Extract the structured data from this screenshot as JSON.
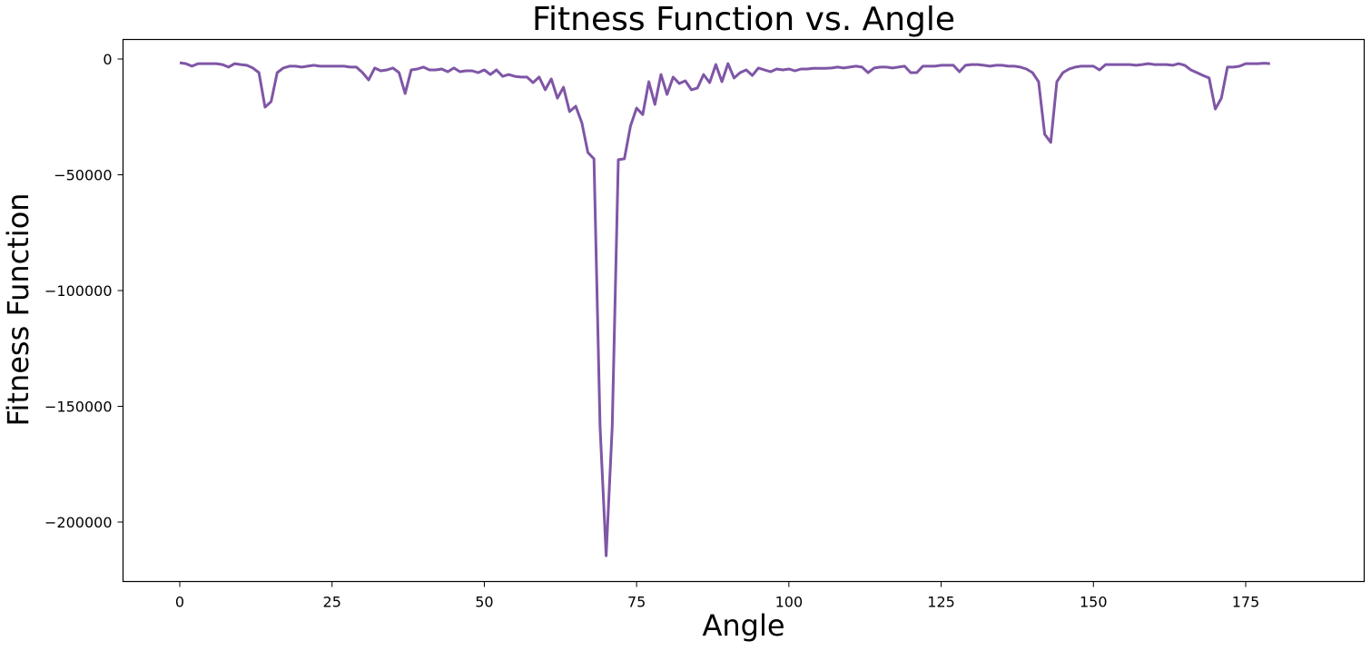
{
  "chart_data": {
    "type": "line",
    "title": "Fitness Function vs. Angle",
    "xlabel": "Angle",
    "ylabel": "Fitness Function",
    "xlim": [
      -9,
      189
    ],
    "ylim": [
      -225000,
      9000
    ],
    "xticks": [
      0,
      25,
      50,
      75,
      100,
      125,
      150,
      175
    ],
    "yticks": [
      0,
      -50000,
      -100000,
      -150000,
      -200000
    ],
    "grid": false,
    "legend": "none",
    "color": "#7f56a6",
    "series": [
      {
        "name": "Fitness Function",
        "x_start": 0,
        "x_step": 1,
        "values": [
          -1600,
          -2000,
          -3100,
          -2000,
          -2000,
          -2000,
          -2000,
          -2400,
          -3500,
          -2000,
          -2400,
          -2700,
          -3900,
          -5900,
          -20800,
          -18400,
          -5900,
          -3900,
          -3100,
          -3100,
          -3500,
          -3100,
          -2700,
          -3100,
          -3100,
          -3100,
          -3100,
          -3100,
          -3500,
          -3500,
          -5900,
          -9000,
          -3900,
          -5100,
          -4700,
          -3900,
          -5900,
          -14900,
          -4700,
          -4300,
          -3500,
          -4700,
          -4700,
          -4300,
          -5500,
          -3900,
          -5500,
          -5100,
          -5100,
          -5900,
          -4700,
          -6700,
          -4700,
          -7500,
          -6700,
          -7500,
          -7800,
          -7800,
          -10200,
          -7800,
          -13300,
          -8600,
          -16900,
          -12200,
          -22700,
          -20400,
          -27500,
          -40400,
          -43100,
          -158800,
          -214500,
          -158800,
          -43500,
          -43100,
          -29000,
          -21200,
          -24000,
          -9800,
          -19600,
          -6700,
          -15300,
          -7800,
          -10600,
          -9400,
          -13300,
          -12500,
          -6700,
          -10200,
          -2400,
          -9800,
          -2000,
          -8200,
          -5900,
          -4700,
          -7100,
          -3900,
          -4700,
          -5500,
          -4300,
          -4700,
          -4300,
          -5100,
          -4300,
          -4300,
          -4000,
          -4000,
          -4000,
          -3900,
          -3500,
          -3900,
          -3500,
          -3100,
          -3500,
          -5900,
          -3900,
          -3500,
          -3500,
          -3900,
          -3500,
          -3100,
          -5900,
          -5900,
          -3100,
          -3100,
          -3100,
          -2700,
          -2700,
          -2700,
          -5500,
          -2700,
          -2400,
          -2400,
          -2700,
          -3100,
          -2700,
          -2700,
          -3100,
          -3100,
          -3500,
          -4300,
          -5900,
          -9800,
          -32500,
          -36000,
          -9800,
          -5900,
          -4300,
          -3500,
          -3100,
          -3100,
          -3100,
          -4700,
          -2400,
          -2400,
          -2400,
          -2400,
          -2400,
          -2700,
          -2400,
          -2000,
          -2400,
          -2400,
          -2400,
          -2700,
          -2000,
          -2700,
          -4700,
          -5900,
          -7100,
          -8200,
          -21600,
          -16900,
          -3500,
          -3500,
          -3100,
          -2000,
          -2000,
          -2000,
          -1800,
          -2000
        ]
      }
    ]
  }
}
